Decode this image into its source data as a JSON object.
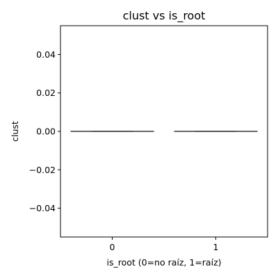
{
  "chart_data": {
    "type": "box",
    "title": "clust vs is_root",
    "xlabel": "is_root (0=no raíz, 1=raíz)",
    "ylabel": "clust",
    "categories": [
      "0",
      "1"
    ],
    "ylim": [
      -0.055,
      0.055
    ],
    "yticks": [
      0.04,
      0.02,
      0.0,
      -0.02,
      -0.04
    ],
    "ytick_labels": [
      "0.04",
      "0.02",
      "0.00",
      "−0.02",
      "−0.04"
    ],
    "boxes": [
      {
        "category": "0",
        "min": 0,
        "q1": 0,
        "median": 0,
        "q3": 0,
        "max": 0
      },
      {
        "category": "1",
        "min": 0,
        "q1": 0,
        "median": 0,
        "q3": 0,
        "max": 0
      }
    ],
    "colors": {
      "box_line": "#3f3f3f",
      "axis": "#000000",
      "background": "#ffffff"
    },
    "grid": false,
    "legend": "none"
  }
}
